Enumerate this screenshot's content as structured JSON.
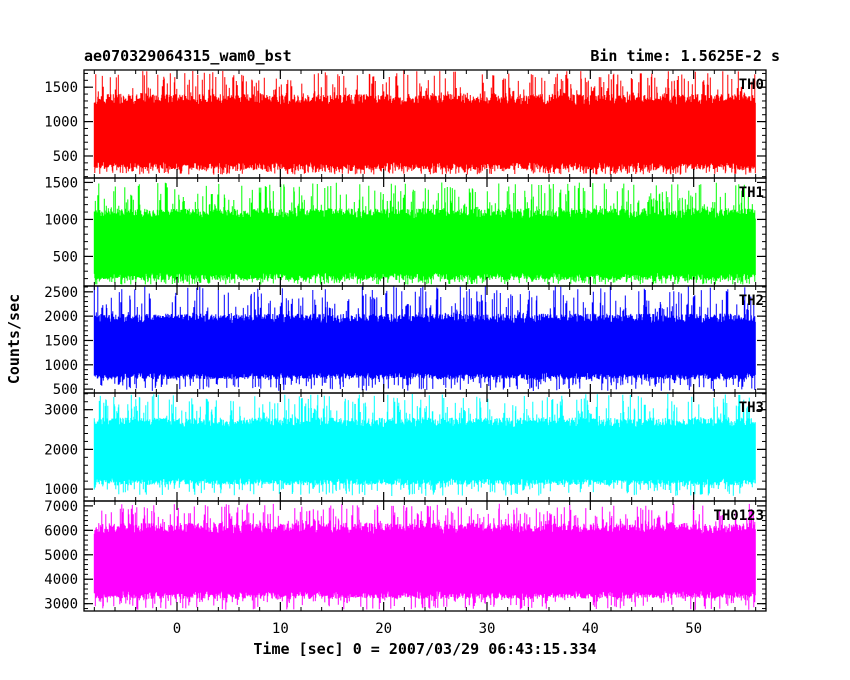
{
  "header": {
    "title": "ae070329064315_wam0_bst",
    "bin_time": "Bin time: 1.5625E-2 s"
  },
  "chart_data": {
    "type": "line",
    "xlabel": "Time [sec] 0 = 2007/03/29 06:43:15.334",
    "ylabel": "Counts/sec",
    "xlim": [
      -9,
      57
    ],
    "xticks": [
      0,
      10,
      20,
      30,
      40,
      50
    ],
    "data_range": [
      -8,
      56
    ],
    "panels": [
      {
        "label": "TH0",
        "color": "#ff0000",
        "ylim": [
          180,
          1750
        ],
        "yticks": [
          500,
          1000,
          1500
        ],
        "typical_low": 300,
        "typical_high": 1400,
        "min_spike": 230,
        "max_spike": 1750
      },
      {
        "label": "TH1",
        "color": "#00ff00",
        "ylim": [
          100,
          1560
        ],
        "yticks": [
          500,
          1000,
          1500
        ],
        "typical_low": 180,
        "typical_high": 1150,
        "min_spike": 120,
        "max_spike": 1500
      },
      {
        "label": "TH2",
        "color": "#0000ff",
        "ylim": [
          420,
          2620
        ],
        "yticks": [
          500,
          1000,
          1500,
          2000,
          2500
        ],
        "typical_low": 700,
        "typical_high": 2050,
        "min_spike": 460,
        "max_spike": 2620
      },
      {
        "label": "TH3",
        "color": "#00ffff",
        "ylim": [
          700,
          3420
        ],
        "yticks": [
          1000,
          2000,
          3000
        ],
        "typical_low": 1100,
        "typical_high": 2800,
        "min_spike": 820,
        "max_spike": 3400
      },
      {
        "label": "TH0123",
        "color": "#ff00ff",
        "ylim": [
          2700,
          7200
        ],
        "yticks": [
          3000,
          4000,
          5000,
          6000,
          7000
        ],
        "typical_low": 3200,
        "typical_high": 6300,
        "min_spike": 2750,
        "max_spike": 7100
      }
    ]
  }
}
